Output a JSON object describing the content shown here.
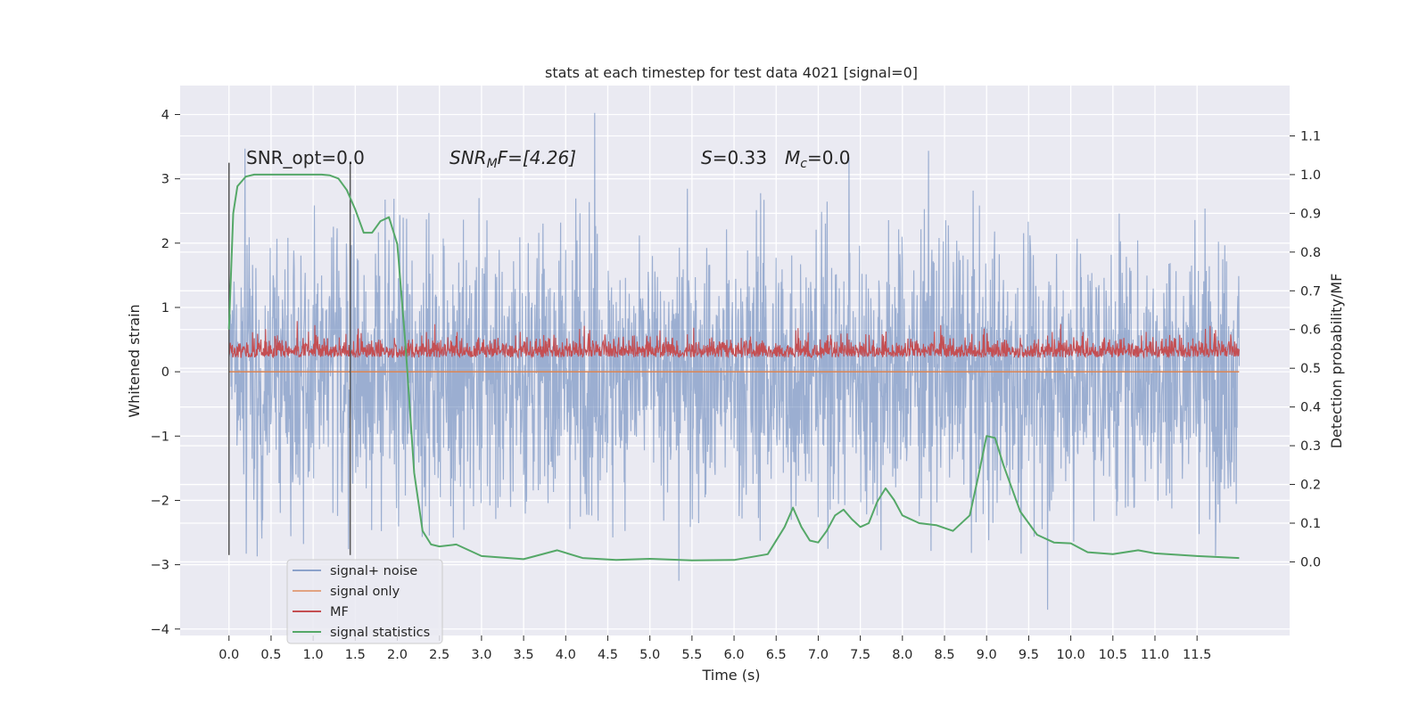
{
  "chart_data": {
    "type": "line",
    "title": "stats at each timestep for test data 4021 [signal=0]",
    "xlabel": "Time (s)",
    "ylabel": "Whitened strain",
    "y2label": "Detection probability/MF",
    "xlim": [
      -0.58,
      12.6
    ],
    "ylim": [
      -4.1,
      4.45
    ],
    "y2lim": [
      -0.19,
      1.23
    ],
    "x_ticks": [
      "0.0",
      "0.5",
      "1.0",
      "1.5",
      "2.0",
      "2.5",
      "3.0",
      "3.5",
      "4.0",
      "4.5",
      "5.0",
      "5.5",
      "6.0",
      "6.5",
      "7.0",
      "7.5",
      "8.0",
      "8.5",
      "9.0",
      "9.5",
      "10.0",
      "10.5",
      "11.0",
      "11.5"
    ],
    "y_ticks": [
      "4",
      "3",
      "2",
      "1",
      "0",
      "−1",
      "−2",
      "−3",
      "−4"
    ],
    "y2_ticks": [
      "1.1",
      "1.0",
      "0.9",
      "0.8",
      "0.7",
      "0.6",
      "0.5",
      "0.4",
      "0.3",
      "0.2",
      "0.1",
      "0.0"
    ],
    "grid": true,
    "legend_position": "lower-left",
    "annotations": {
      "snr_opt": "SNR_opt=0.0",
      "snr_mf_prefix": "SNR",
      "snr_mf_sub": "M",
      "snr_mf_suffix": "F=[4.26]",
      "s_prefix": "S",
      "s_value": "=0.33",
      "mc_prefix": "M",
      "mc_sub": "c",
      "mc_value": "=0.0"
    },
    "markers": [
      0.0,
      1.44
    ],
    "series": [
      {
        "name": "signal+ noise",
        "color": "#4c72b0",
        "axis": "left",
        "x_range": [
          0.0,
          12.0
        ],
        "typical_range": [
          -2.0,
          2.0
        ],
        "extremes": [
          -3.7,
          4.1
        ]
      },
      {
        "name": "signal only",
        "color": "#dd8452",
        "axis": "left",
        "x_range": [
          0.0,
          12.0
        ],
        "constant": 0.0
      },
      {
        "name": "MF",
        "color": "#c44e52",
        "axis": "right",
        "x_range": [
          0.0,
          12.0
        ],
        "typical_range": [
          0.5,
          0.6
        ],
        "extremes": [
          0.49,
          0.66
        ]
      },
      {
        "name": "signal statistics",
        "color": "#55a868",
        "axis": "right",
        "x": [
          0.0,
          0.05,
          0.1,
          0.2,
          0.3,
          0.5,
          1.0,
          1.1,
          1.2,
          1.3,
          1.4,
          1.5,
          1.6,
          1.7,
          1.8,
          1.9,
          2.0,
          2.1,
          2.2,
          2.3,
          2.4,
          2.5,
          2.7,
          3.0,
          3.5,
          3.9,
          4.2,
          4.6,
          5.0,
          5.5,
          6.0,
          6.4,
          6.6,
          6.7,
          6.8,
          6.9,
          7.0,
          7.1,
          7.2,
          7.3,
          7.4,
          7.5,
          7.6,
          7.7,
          7.8,
          7.9,
          8.0,
          8.2,
          8.4,
          8.6,
          8.8,
          8.9,
          9.0,
          9.1,
          9.2,
          9.4,
          9.6,
          9.8,
          10.0,
          10.2,
          10.5,
          10.8,
          11.0,
          11.5,
          12.0
        ],
        "y": [
          0.6,
          0.9,
          0.97,
          0.995,
          1.0,
          1.0,
          1.0,
          1.0,
          0.998,
          0.99,
          0.96,
          0.91,
          0.85,
          0.85,
          0.88,
          0.89,
          0.82,
          0.55,
          0.23,
          0.08,
          0.045,
          0.04,
          0.045,
          0.015,
          0.007,
          0.03,
          0.01,
          0.005,
          0.008,
          0.004,
          0.005,
          0.02,
          0.09,
          0.14,
          0.09,
          0.055,
          0.05,
          0.08,
          0.12,
          0.135,
          0.11,
          0.09,
          0.1,
          0.155,
          0.19,
          0.16,
          0.12,
          0.1,
          0.095,
          0.08,
          0.12,
          0.22,
          0.325,
          0.32,
          0.25,
          0.13,
          0.07,
          0.05,
          0.048,
          0.025,
          0.02,
          0.03,
          0.022,
          0.015,
          0.01
        ]
      }
    ]
  }
}
